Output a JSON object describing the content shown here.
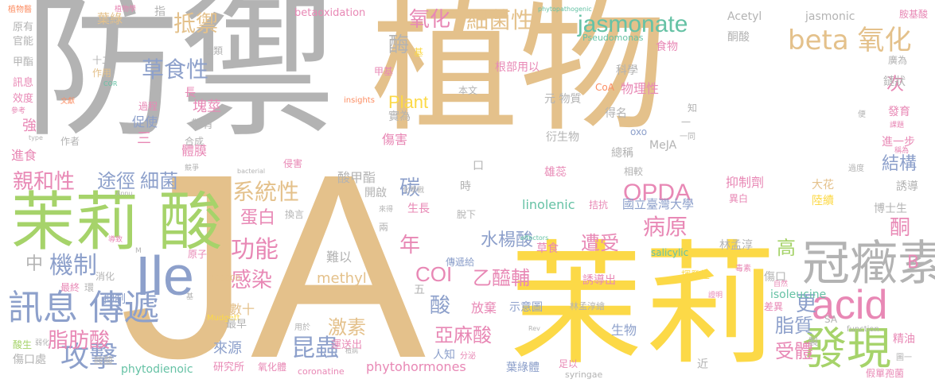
{
  "palette": {
    "gray": "#b3b3b3",
    "tan": "#e4c18b",
    "yellow": "#fcd947",
    "green": "#a6d36a",
    "pink": "#e888b5",
    "teal": "#66c2a5",
    "blue": "#8da0cb",
    "orange": "#fc8d62"
  },
  "words": [
    {
      "id": "jia-she",
      "text": "防禦",
      "color": "gray"
    },
    {
      "id": "zhi-wu",
      "text": "植物",
      "color": "tan"
    },
    {
      "id": "ja",
      "text": "JA",
      "color": "tan"
    },
    {
      "id": "mo-li-big",
      "text": "茉莉",
      "color": "yellow"
    },
    {
      "id": "mo-li-suan",
      "text": "茉莉 酸",
      "color": "green"
    },
    {
      "id": "guan-yan-su",
      "text": "冠癥素",
      "color": "gray"
    },
    {
      "id": "acid",
      "text": "acid",
      "color": "pink"
    },
    {
      "id": "fa-xian",
      "text": "發現",
      "color": "green"
    },
    {
      "id": "ile",
      "text": "Ile",
      "color": "blue"
    },
    {
      "id": "xun-xi-chuan-di",
      "text": "訊息 傳遞",
      "color": "blue"
    },
    {
      "id": "jasmonate",
      "text": "jasmonate",
      "color": "teal"
    },
    {
      "id": "beta-yang-hua",
      "text": "beta 氧化",
      "color": "tan"
    },
    {
      "id": "xi-jun-xing",
      "text": "細菌性",
      "color": "tan"
    },
    {
      "id": "di-yu",
      "text": "抵禦",
      "color": "tan"
    },
    {
      "id": "cao-shi-xing",
      "text": "草食性",
      "color": "blue"
    },
    {
      "id": "xi-tong-xing",
      "text": "系統性",
      "color": "tan"
    },
    {
      "id": "mo-li-small",
      "text": "茉莉",
      "color": "green"
    },
    {
      "id": "opda",
      "text": "OPDA",
      "color": "pink"
    },
    {
      "id": "gong-ji",
      "text": "攻擊",
      "color": "blue"
    },
    {
      "id": "kun-chong",
      "text": "昆蟲",
      "color": "blue"
    },
    {
      "id": "ji-zhi",
      "text": "機制",
      "color": "blue"
    },
    {
      "id": "zhi-fang-suan",
      "text": "脂肪酸",
      "color": "pink"
    },
    {
      "id": "qin-he-xing",
      "text": "親和性",
      "color": "pink"
    },
    {
      "id": "tu-jing",
      "text": "途徑",
      "color": "blue"
    },
    {
      "id": "xi-jun",
      "text": "細菌",
      "color": "blue"
    },
    {
      "id": "gong-neng",
      "text": "功能",
      "color": "pink"
    },
    {
      "id": "gan-ran",
      "text": "感染",
      "color": "pink"
    },
    {
      "id": "ji-su",
      "text": "激素",
      "color": "tan"
    },
    {
      "id": "shui-yang-suan",
      "text": "水楊酸",
      "color": "blue"
    },
    {
      "id": "ya-ma-suan",
      "text": "亞麻酸",
      "color": "pink"
    },
    {
      "id": "yi-xian-fu",
      "text": "乙醯輔",
      "color": "pink"
    },
    {
      "id": "zao-shou",
      "text": "遭受",
      "color": "pink"
    },
    {
      "id": "bing-yuan",
      "text": "病原",
      "color": "pink"
    },
    {
      "id": "jie-gou",
      "text": "結構",
      "color": "blue"
    },
    {
      "id": "zhi-zhi",
      "text": "脂質",
      "color": "blue"
    },
    {
      "id": "shou-ti",
      "text": "受體",
      "color": "pink"
    },
    {
      "id": "coi",
      "text": "COI",
      "color": "pink"
    },
    {
      "id": "yang-hua",
      "text": "氧化",
      "color": "pink"
    },
    {
      "id": "mei",
      "text": "酶",
      "color": "gray"
    },
    {
      "id": "ci",
      "text": "次",
      "color": "pink"
    },
    {
      "id": "tan",
      "text": "碳",
      "color": "blue"
    },
    {
      "id": "nian",
      "text": "年",
      "color": "pink"
    },
    {
      "id": "tong",
      "text": "酮",
      "color": "pink"
    },
    {
      "id": "gao",
      "text": "高",
      "color": "green"
    },
    {
      "id": "geng",
      "text": "更",
      "color": "blue"
    },
    {
      "id": "suan-side",
      "text": "酸",
      "color": "blue"
    },
    {
      "id": "plant",
      "text": "Plant",
      "color": "yellow"
    },
    {
      "id": "dan-bai",
      "text": "蛋白",
      "color": "pink"
    },
    {
      "id": "zhong",
      "text": "中",
      "color": "gray"
    },
    {
      "id": "fa-xian-2",
      "text": "亞麻酸",
      "color": "pink"
    },
    {
      "id": "linolenic",
      "text": "linolenic",
      "color": "teal"
    },
    {
      "id": "phytohormones",
      "text": "phytohormones",
      "color": "pink"
    },
    {
      "id": "methyl",
      "text": "methyl",
      "color": "tan"
    },
    {
      "id": "isoleucine",
      "text": "isoleucine",
      "color": "teal"
    },
    {
      "id": "phytodienoic",
      "text": "phytodienoic",
      "color": "teal"
    },
    {
      "id": "coronatine",
      "text": "coronatine",
      "color": "pink"
    },
    {
      "id": "salicylic",
      "text": "salicylic",
      "color": "teal"
    },
    {
      "id": "syringae",
      "text": "syringae",
      "color": "gray"
    },
    {
      "id": "jasmonic",
      "text": "jasmonic",
      "color": "gray"
    },
    {
      "id": "acetyl",
      "text": "Acetyl",
      "color": "gray"
    },
    {
      "id": "betaoxidation",
      "text": "betaoxidation",
      "color": "pink"
    },
    {
      "id": "pseudomonas",
      "text": "Pseudomonas",
      "color": "teal"
    },
    {
      "id": "phytopathogenic",
      "text": "phytopathogenic",
      "color": "teal"
    },
    {
      "id": "insights",
      "text": "insights",
      "color": "orange"
    },
    {
      "id": "mudgett",
      "text": "Mudgett",
      "color": "yellow"
    },
    {
      "id": "dc3000",
      "text": "DC3000",
      "color": "tan"
    },
    {
      "id": "effectors",
      "text": "effectors",
      "color": "teal"
    },
    {
      "id": "function",
      "text": "function",
      "color": "gray"
    },
    {
      "id": "meja",
      "text": "MeJA",
      "color": "gray"
    },
    {
      "id": "oxo",
      "text": "oxo",
      "color": "blue"
    },
    {
      "id": "coa",
      "text": "CoA",
      "color": "orange"
    },
    {
      "id": "sa",
      "text": "SA",
      "color": "gray"
    },
    {
      "id": "cor",
      "text": "COR",
      "color": "teal"
    },
    {
      "id": "guo-li",
      "text": "國立臺灣大學",
      "color": "blue"
    },
    {
      "id": "lin-meng-chun",
      "text": "林孟淳",
      "color": "gray"
    },
    {
      "id": "lin-meng-chun-hui",
      "text": "林孟淳繪",
      "color": "gray"
    },
    {
      "id": "shi-yi-tu",
      "text": "示意圖",
      "color": "blue"
    },
    {
      "id": "ye-lu-ti",
      "text": "葉綠體",
      "color": "blue"
    },
    {
      "id": "yan-jiu-suo",
      "text": "研究所",
      "color": "pink"
    },
    {
      "id": "yang-hua-ti",
      "text": "氧化體",
      "color": "pink"
    },
    {
      "id": "shu-shi",
      "text": "數十",
      "color": "tan"
    },
    {
      "id": "zui-zao",
      "text": "最早",
      "color": "gray"
    },
    {
      "id": "lai-yuan",
      "text": "來源",
      "color": "blue"
    },
    {
      "id": "yun-song-chu",
      "text": "運送出",
      "color": "pink"
    },
    {
      "id": "ren-zhi",
      "text": "人知",
      "color": "blue"
    },
    {
      "id": "fang-qi",
      "text": "放棄",
      "color": "pink"
    },
    {
      "id": "sheng-wu",
      "text": "生物",
      "color": "blue"
    },
    {
      "id": "jing-you",
      "text": "精油",
      "color": "pink"
    },
    {
      "id": "jia-dan-bao-jun",
      "text": "假單孢菌",
      "color": "pink"
    },
    {
      "id": "shang-kou",
      "text": "傷口",
      "color": "gray"
    },
    {
      "id": "shang-kou-chu",
      "text": "傷口處",
      "color": "gray"
    },
    {
      "id": "suan-sheng",
      "text": "酸生",
      "color": "green"
    },
    {
      "id": "an-ji-suan",
      "text": "胺基酸",
      "color": "pink"
    },
    {
      "id": "xu-dao-chu",
      "text": "誘導出",
      "color": "pink"
    },
    {
      "id": "hui-fa-xing",
      "text": "揮發性",
      "color": "yellow"
    },
    {
      "id": "chuan-di-gei",
      "text": "傳遞給",
      "color": "blue"
    },
    {
      "id": "cao-shi",
      "text": "草食",
      "color": "pink"
    },
    {
      "id": "xiong-rui",
      "text": "雄蕊",
      "color": "pink"
    },
    {
      "id": "yan-sheng-wu",
      "text": "衍生物",
      "color": "gray"
    },
    {
      "id": "kuai-jing",
      "text": "塊莖",
      "color": "pink"
    },
    {
      "id": "ti-mo",
      "text": "體膜",
      "color": "pink"
    },
    {
      "id": "cu-shi",
      "text": "促使",
      "color": "blue"
    },
    {
      "id": "shang-hai",
      "text": "傷害",
      "color": "pink"
    },
    {
      "id": "nan-yi",
      "text": "難以",
      "color": "gray"
    },
    {
      "id": "suan-jia-zhi",
      "text": "酸甲酯",
      "color": "gray"
    },
    {
      "id": "kai-qi",
      "text": "開啟",
      "color": "gray"
    },
    {
      "id": "sheng-chang",
      "text": "生長",
      "color": "pink"
    },
    {
      "id": "yi-zhi-ji",
      "text": "抑制劑",
      "color": "pink"
    },
    {
      "id": "da-hua",
      "text": "大花",
      "color": "tan"
    },
    {
      "id": "lu-xu",
      "text": "陸續",
      "color": "yellow"
    },
    {
      "id": "xu-dao",
      "text": "誘導",
      "color": "gray"
    },
    {
      "id": "bo-shi-sheng",
      "text": "博士生",
      "color": "gray"
    },
    {
      "id": "jin-yi-bu",
      "text": "進一步",
      "color": "pink"
    },
    {
      "id": "lian-zhuang",
      "text": "鏈狀",
      "color": "gray"
    },
    {
      "id": "guang-wei",
      "text": "廣為",
      "color": "gray"
    },
    {
      "id": "fa-yu",
      "text": "發育",
      "color": "pink"
    },
    {
      "id": "tong-suan",
      "text": "酮酸",
      "color": "gray"
    },
    {
      "id": "ke-xue",
      "text": "科學",
      "color": "gray"
    },
    {
      "id": "wu-li-xing",
      "text": "物理性",
      "color": "pink"
    },
    {
      "id": "shi-wu",
      "text": "食物",
      "color": "pink"
    },
    {
      "id": "de-ming",
      "text": "得名",
      "color": "gray"
    },
    {
      "id": "zong-cheng",
      "text": "總稱",
      "color": "gray"
    },
    {
      "id": "yuan-wu-zhi",
      "text": "元 物質",
      "color": "gray"
    },
    {
      "id": "gen-bu-yong-yi",
      "text": "根部用以",
      "color": "pink"
    },
    {
      "id": "shi-wei",
      "text": "實為",
      "color": "gray"
    },
    {
      "id": "ben-wen",
      "text": "本文",
      "color": "gray"
    },
    {
      "id": "ye-lu",
      "text": "葉綠",
      "color": "tan"
    },
    {
      "id": "zhi-wu-small",
      "text": "植物醫",
      "color": "orange"
    },
    {
      "id": "yuan-you",
      "text": "原有",
      "color": "gray"
    },
    {
      "id": "guan-neng",
      "text": "官能",
      "color": "gray"
    },
    {
      "id": "jia-zhi",
      "text": "甲酯",
      "color": "gray"
    },
    {
      "id": "xun-xi-small",
      "text": "訊息",
      "color": "pink"
    },
    {
      "id": "xiao-du",
      "text": "效度",
      "color": "pink"
    },
    {
      "id": "qiang",
      "text": "強",
      "color": "pink"
    },
    {
      "id": "jin-shi",
      "text": "進食",
      "color": "pink"
    },
    {
      "id": "san",
      "text": "三",
      "color": "pink"
    },
    {
      "id": "guo-cheng",
      "text": "過程",
      "color": "pink"
    },
    {
      "id": "zuo-zhe",
      "text": "作者",
      "color": "gray"
    },
    {
      "id": "wen-xian",
      "text": "文獻",
      "color": "orange"
    },
    {
      "id": "shi-er",
      "text": "十二",
      "color": "gray"
    },
    {
      "id": "zuo-yong",
      "text": "作用",
      "color": "tan"
    },
    {
      "id": "zhong-lei",
      "text": "種類",
      "color": "gray"
    },
    {
      "id": "chang",
      "text": "長",
      "color": "pink"
    },
    {
      "id": "dai-you",
      "text": "帶有",
      "color": "gray"
    },
    {
      "id": "zhi",
      "text": "指",
      "color": "gray"
    },
    {
      "id": "qin-hai",
      "text": "侵害",
      "color": "pink"
    },
    {
      "id": "yi-zhi",
      "text": "抑制",
      "color": "blue"
    },
    {
      "id": "xiao-hua",
      "text": "消化",
      "color": "gray"
    },
    {
      "id": "huan",
      "text": "環",
      "color": "gray"
    },
    {
      "id": "zui-zhong",
      "text": "最終",
      "color": "pink"
    },
    {
      "id": "yuan-zi",
      "text": "原子",
      "color": "pink"
    },
    {
      "id": "he-cheng",
      "text": "合成",
      "color": "gray"
    },
    {
      "id": "huan-yan",
      "text": "換言",
      "color": "gray"
    },
    {
      "id": "tuo-xia",
      "text": "脫下",
      "color": "gray"
    },
    {
      "id": "liang",
      "text": "兩",
      "color": "gray"
    },
    {
      "id": "wu",
      "text": "五",
      "color": "gray"
    },
    {
      "id": "shi",
      "text": "時",
      "color": "gray"
    },
    {
      "id": "yi-tong",
      "text": "一同",
      "color": "gray"
    },
    {
      "id": "xiang-jiao",
      "text": "相較",
      "color": "gray"
    },
    {
      "id": "guo-du",
      "text": "過度",
      "color": "gray"
    },
    {
      "id": "yi-bai",
      "text": "異白",
      "color": "pink"
    },
    {
      "id": "cha-yi",
      "text": "差異",
      "color": "pink"
    },
    {
      "id": "du-su",
      "text": "毒素",
      "color": "pink"
    },
    {
      "id": "tu-yi",
      "text": "圖一",
      "color": "gray"
    },
    {
      "id": "jin",
      "text": "近",
      "color": "gray"
    },
    {
      "id": "zhi-small",
      "text": "製",
      "color": "gray"
    },
    {
      "id": "zu-yi",
      "text": "足以",
      "color": "pink"
    },
    {
      "id": "yong-yu",
      "text": "用於",
      "color": "gray"
    },
    {
      "id": "fen-mi",
      "text": "分泌",
      "color": "pink"
    },
    {
      "id": "zhi-bing",
      "text": "植病",
      "color": "gray"
    },
    {
      "id": "jia-ji",
      "text": "甲基",
      "color": "pink"
    },
    {
      "id": "ji",
      "text": "基",
      "color": "yellow"
    },
    {
      "id": "kou",
      "text": "口",
      "color": "gray"
    },
    {
      "id": "yi",
      "text": "一",
      "color": "gray"
    },
    {
      "id": "zhi-dao",
      "text": "知",
      "color": "gray"
    },
    {
      "id": "bian",
      "text": "便",
      "color": "gray"
    },
    {
      "id": "ke-ti",
      "text": "課題",
      "color": "pink"
    },
    {
      "id": "cheng-wei",
      "text": "稱為",
      "color": "pink"
    },
    {
      "id": "zi-hua",
      "text": "自然",
      "color": "pink"
    },
    {
      "id": "dao-zhi",
      "text": "導致",
      "color": "pink"
    },
    {
      "id": "zhi-wu-fang",
      "text": "植物學",
      "color": "pink"
    },
    {
      "id": "zheng-ming",
      "text": "證明",
      "color": "pink"
    },
    {
      "id": "ruo-hua",
      "text": "弱化",
      "color": "gray"
    },
    {
      "id": "an-suan",
      "text": "胺酸",
      "color": "gray"
    },
    {
      "id": "jie-zhu",
      "text": "拮抗",
      "color": "pink"
    },
    {
      "id": "bacterial",
      "text": "bacterial",
      "color": "gray"
    },
    {
      "id": "type",
      "text": "type",
      "color": "gray"
    },
    {
      "id": "rev",
      "text": "Rev",
      "color": "gray"
    },
    {
      "id": "annu",
      "text": "Annu",
      "color": "gray"
    },
    {
      "id": "bian-hua",
      "text": "化學戰",
      "color": "gray"
    },
    {
      "id": "lai-de",
      "text": "來得",
      "color": "gray"
    },
    {
      "id": "can-kao",
      "text": "參考",
      "color": "pink"
    },
    {
      "id": "jing-zheng",
      "text": "競爭",
      "color": "gray"
    },
    {
      "id": "yi-dang",
      "text": "以當",
      "color": "gray"
    },
    {
      "id": "zhu-yao",
      "text": "主要",
      "color": "gray"
    },
    {
      "id": "shou-shang",
      "text": "受傷",
      "color": "pink"
    },
    {
      "id": "jian-shao",
      "text": "減少",
      "color": "gray"
    },
    {
      "id": "huo-xing",
      "text": "活性",
      "color": "gray"
    },
    {
      "id": "zeng-jia",
      "text": "增加",
      "color": "pink"
    },
    {
      "id": "qing-jun",
      "text": "寄主",
      "color": "gray"
    },
    {
      "id": "jia-ji-2",
      "text": "基",
      "color": "gray"
    },
    {
      "id": "mu",
      "text": "M",
      "color": "gray"
    },
    {
      "id": "b",
      "text": "B",
      "color": "gray"
    },
    {
      "id": "a",
      "text": "A",
      "color": "pink"
    }
  ]
}
